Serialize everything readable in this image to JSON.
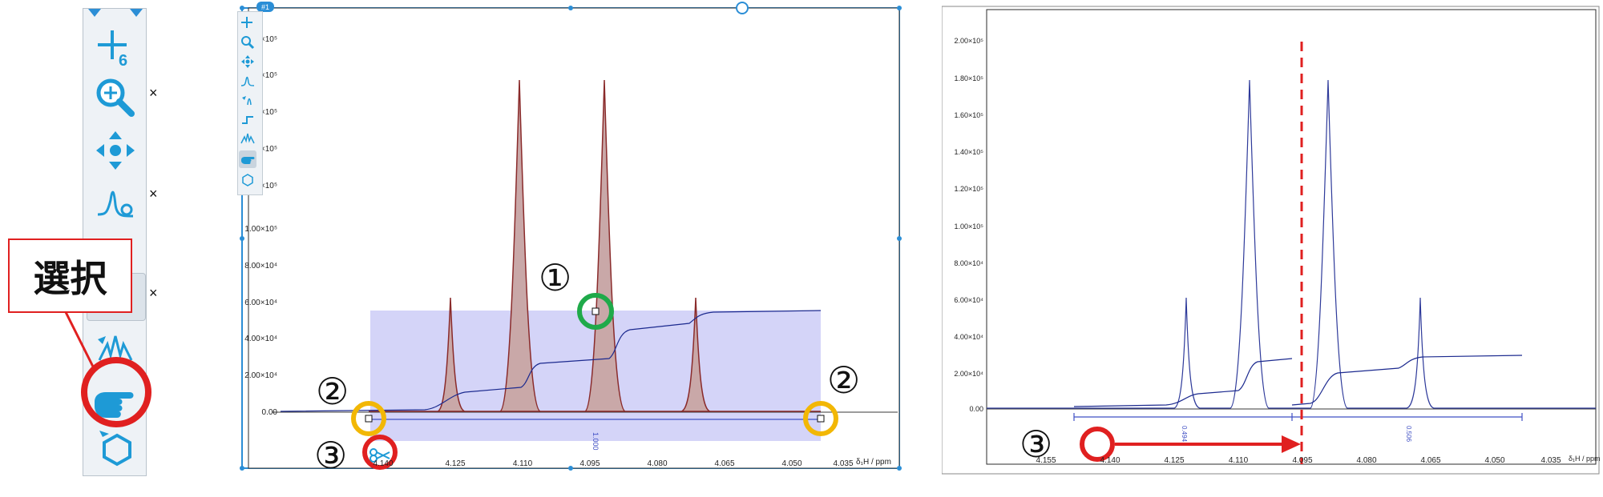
{
  "callout": {
    "label": "選択"
  },
  "markers": {
    "one": "①",
    "two": "②",
    "three": "③"
  },
  "left_toolbar": {
    "tools": [
      {
        "icon": "crosshair-cursor-icon"
      },
      {
        "icon": "zoom-icon"
      },
      {
        "icon": "pan-icon"
      },
      {
        "icon": "phase-correction-icon"
      },
      {
        "icon": "peak-pick-icon"
      },
      {
        "icon": "integration-icon"
      },
      {
        "icon": "multiplet-icon"
      },
      {
        "icon": "select-hand-icon",
        "selected": true
      },
      {
        "icon": "structure-hexagon-icon"
      }
    ],
    "close_symbol": "×"
  },
  "panel_left": {
    "badge": "#1",
    "x_axis_label": "δ₁H / ppm",
    "x_ticks": [
      "4.140",
      "4.125",
      "4.110",
      "4.095",
      "4.080",
      "4.065",
      "4.050",
      "4.035"
    ],
    "y_ticks": [
      "1.00×10⁵",
      "8.00×10⁴",
      "6.00×10⁴",
      "4.00×10⁴",
      "2.00×10⁴",
      "0.00"
    ],
    "y_ticks_partial_upper": [
      "×10⁵",
      "×10⁵",
      "×10⁵",
      "×10⁵",
      "×10⁵",
      "×10⁵"
    ],
    "integral_value": "1.000"
  },
  "panel_right": {
    "x_axis_label": "δ₁H / ppm",
    "x_ticks": [
      "4.155",
      "4.140",
      "4.125",
      "4.110",
      "4.095",
      "4.080",
      "4.065",
      "4.050",
      "4.035"
    ],
    "y_ticks": [
      "2.00×10⁵",
      "1.80×10⁵",
      "1.60×10⁵",
      "1.40×10⁵",
      "1.20×10⁵",
      "1.00×10⁵",
      "8.00×10⁴",
      "6.00×10⁴",
      "4.00×10⁴",
      "2.00×10⁴",
      "0.00"
    ],
    "integral_left": "0.494",
    "integral_right": "0.506"
  },
  "colors": {
    "highlight_red": "#e02020",
    "highlight_yellow": "#f2b705",
    "highlight_green": "#1faa4a",
    "spectrum_line": "#8a2b2b",
    "spectrum_fill": "#c9a8a8",
    "selection_fill": "#c6c6f5",
    "integral_line": "#1c2a8f"
  }
}
